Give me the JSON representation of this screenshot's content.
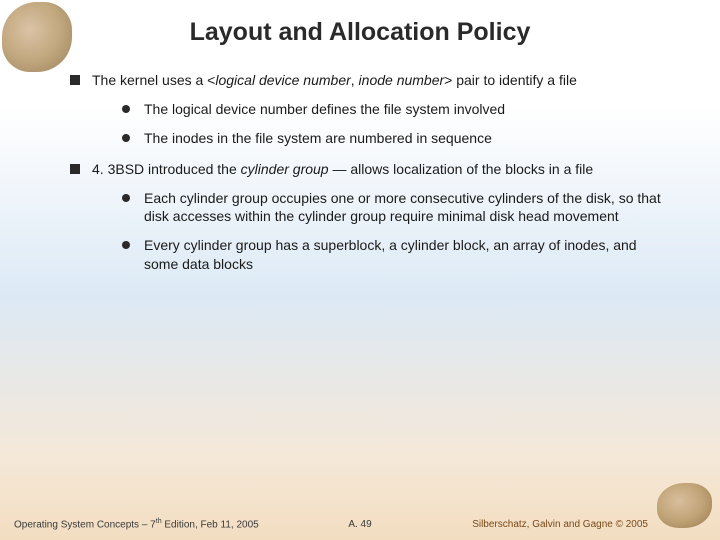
{
  "title": "Layout and Allocation Policy",
  "bullets": {
    "b1": {
      "pre": "The kernel uses a <",
      "i1": "logical device number",
      "mid": ", ",
      "i2": "inode number",
      "post": "> pair to identify a file",
      "sub1": "The logical device number defines the file system involved",
      "sub2": "The inodes in the file system are numbered in sequence"
    },
    "b2": {
      "pre": "4. 3BSD introduced the ",
      "i1": "cylinder group",
      "post": " — allows localization of the blocks in a file",
      "sub1": "Each cylinder group occupies one or more consecutive cylinders of the disk, so that disk accesses within the cylinder group require minimal disk head movement",
      "sub2": "Every cylinder group has a superblock, a cylinder block, an array of inodes, and some data blocks"
    }
  },
  "footer": {
    "left_pre": "Operating System Concepts – 7",
    "left_sup": "th",
    "left_post": " Edition, Feb 11, 2005",
    "center": "A. 49",
    "right": "Silberschatz, Galvin and Gagne © 2005"
  },
  "colors": {
    "title": "#2a2a2a",
    "text": "#1a1a1a",
    "footer_right": "#7a4a1a",
    "bg_top": "#ffffff",
    "bg_mid": "#dce9f5",
    "bg_bottom": "#f2ddc0"
  },
  "fonts": {
    "title_size": 25,
    "body_size": 14,
    "footer_size": 10
  }
}
